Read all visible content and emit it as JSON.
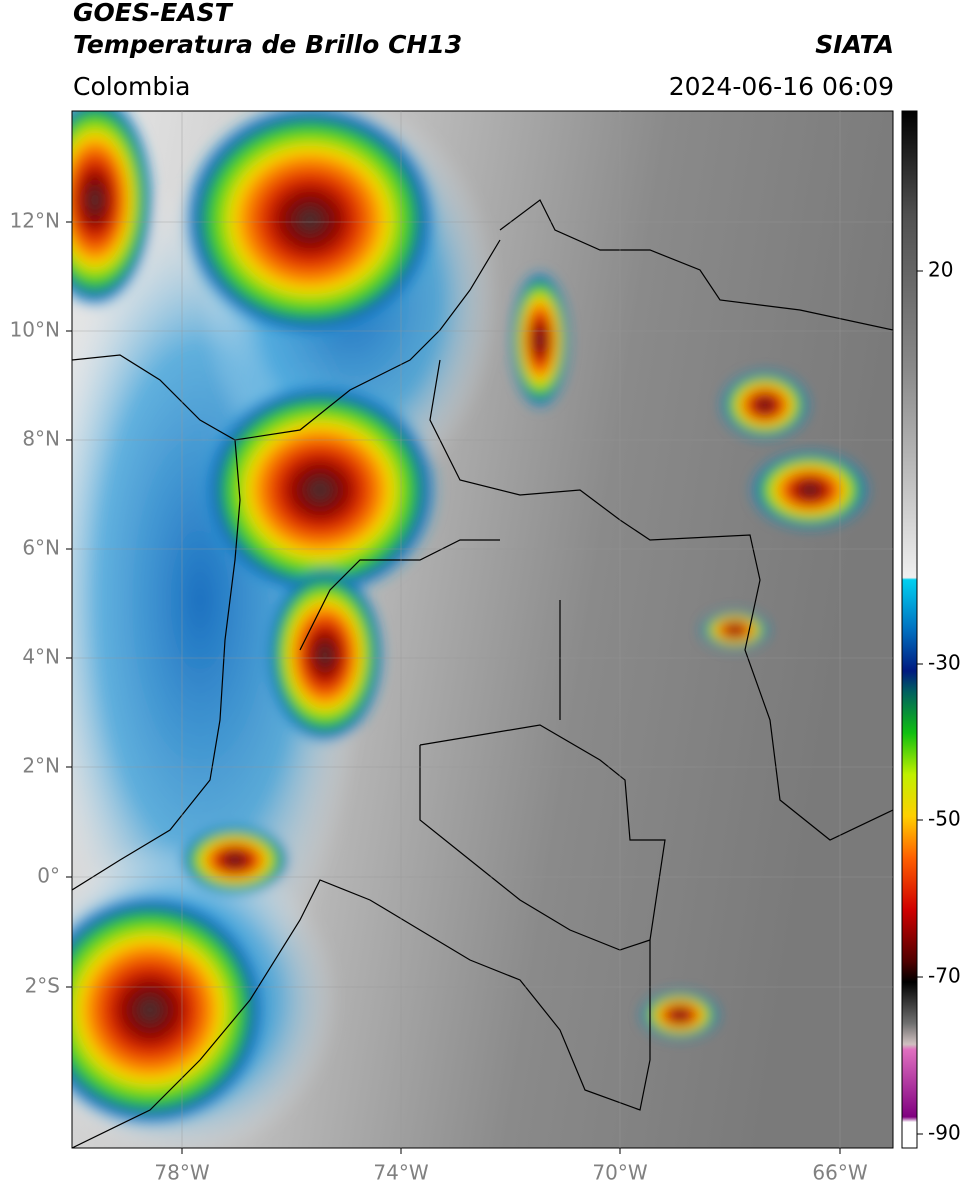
{
  "header": {
    "title": "GOES-EAST",
    "subtitle": "Temperatura de Brillo CH13",
    "region": "Colombia",
    "source": "SIATA",
    "datetime": "2024-06-16 06:09"
  },
  "map": {
    "lat_labels": [
      "12°N",
      "10°N",
      "8°N",
      "6°N",
      "4°N",
      "2°N",
      "0°",
      "2°S"
    ],
    "lon_labels": [
      "78°W",
      "74°W",
      "70°W",
      "66°W"
    ]
  },
  "colorbar": {
    "labels": [
      "20",
      "-30",
      "-50",
      "-70",
      "-90"
    ]
  }
}
